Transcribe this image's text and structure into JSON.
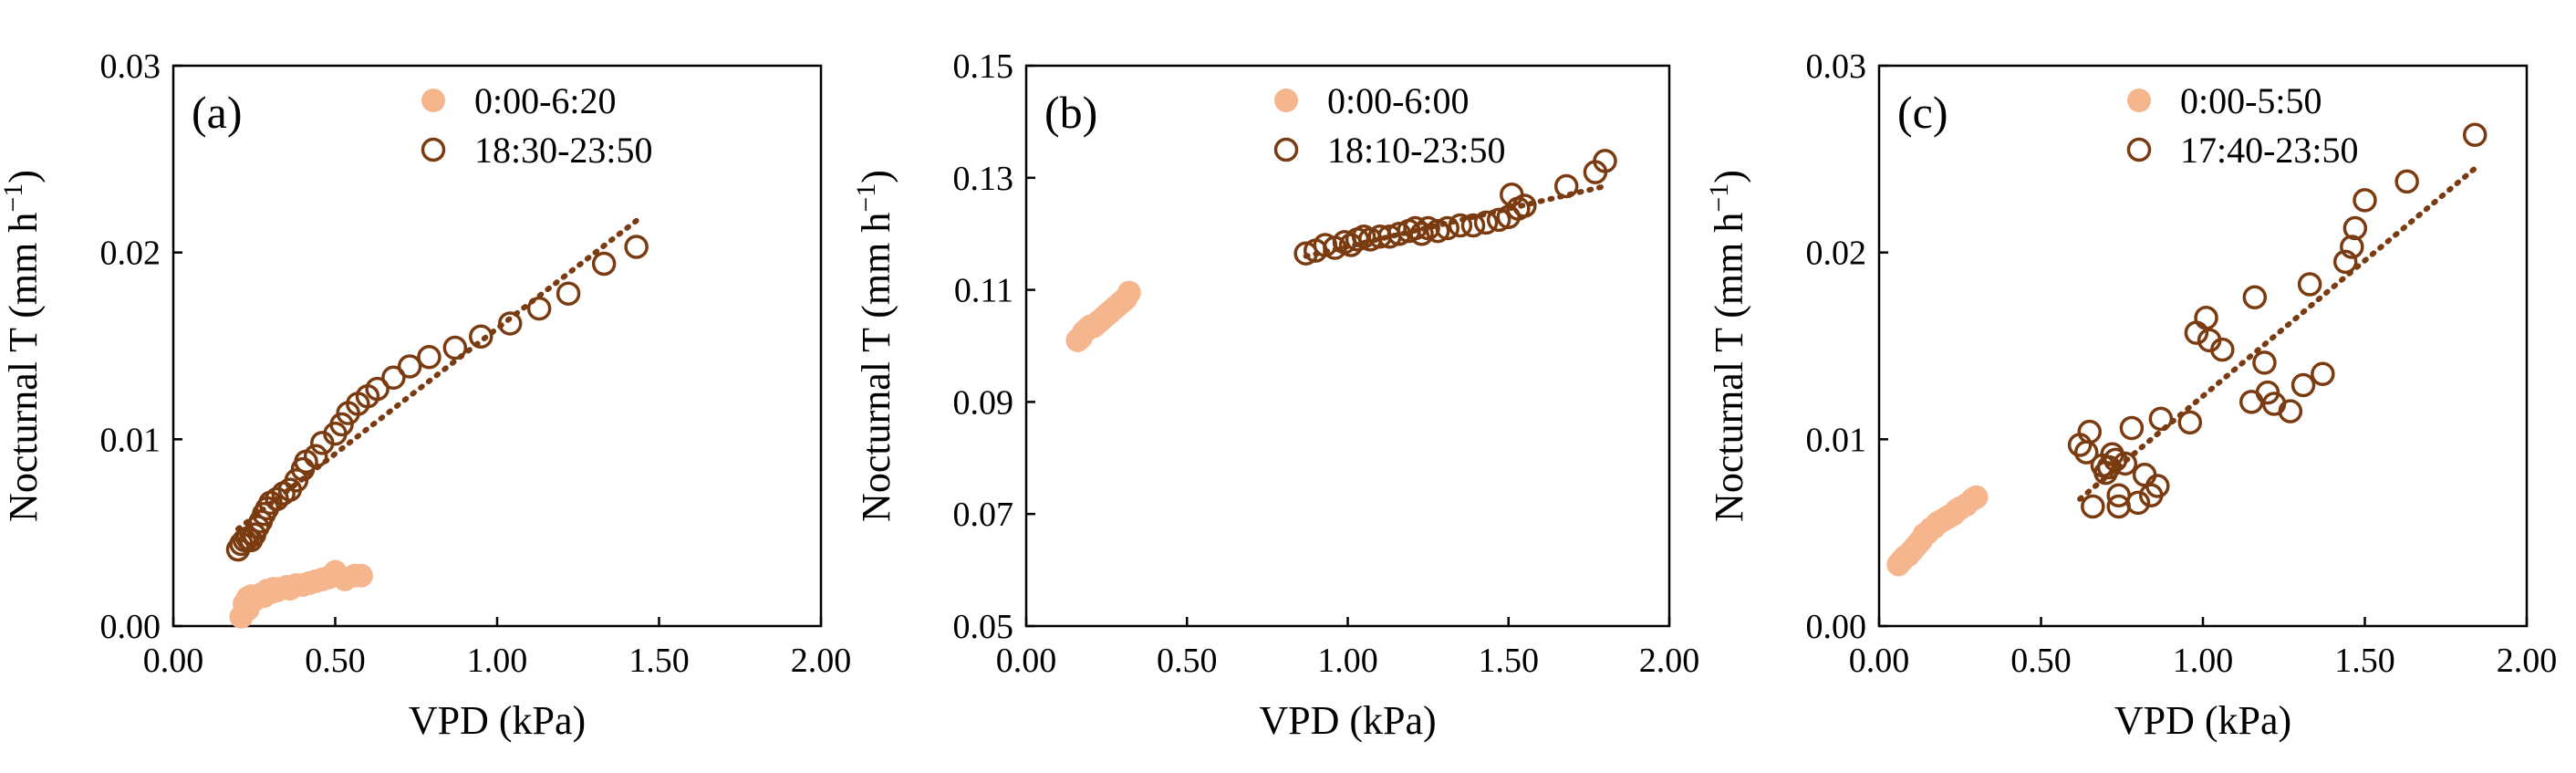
{
  "colors": {
    "series1": "#f5b68e",
    "series2": "#7a3b10",
    "axis": "#000000"
  },
  "chart_data": [
    {
      "type": "scatter",
      "panel_label": "(a)",
      "xlabel": "VPD (kPa)",
      "ylabel": "Nocturnal T (mm h",
      "ylabel_sup": "−1",
      "ylabel_close": ")",
      "xlim": [
        0,
        2
      ],
      "ylim": [
        0,
        0.03
      ],
      "xticks": [
        0,
        0.5,
        1,
        1.5,
        2
      ],
      "xtick_labels": [
        "0.00",
        "0.50",
        "1.00",
        "1.50",
        "2.00"
      ],
      "yticks": [
        0,
        0.01,
        0.02,
        0.03
      ],
      "ytick_labels": [
        "0.00",
        "0.01",
        "0.02",
        "0.03"
      ],
      "series": [
        {
          "name": "0:00-6:20",
          "marker": "filled",
          "color": "#f5b68e",
          "points": [
            [
              0.21,
              0.0005
            ],
            [
              0.22,
              0.0008
            ],
            [
              0.22,
              0.0012
            ],
            [
              0.23,
              0.0015
            ],
            [
              0.23,
              0.0009
            ],
            [
              0.24,
              0.0016
            ],
            [
              0.25,
              0.0014
            ],
            [
              0.26,
              0.0016
            ],
            [
              0.27,
              0.0017
            ],
            [
              0.28,
              0.0016
            ],
            [
              0.29,
              0.0019
            ],
            [
              0.3,
              0.0018
            ],
            [
              0.31,
              0.002
            ],
            [
              0.32,
              0.0019
            ],
            [
              0.33,
              0.002
            ],
            [
              0.35,
              0.0021
            ],
            [
              0.36,
              0.002
            ],
            [
              0.38,
              0.0022
            ],
            [
              0.4,
              0.0022
            ],
            [
              0.42,
              0.0023
            ],
            [
              0.44,
              0.0024
            ],
            [
              0.46,
              0.0025
            ],
            [
              0.48,
              0.0026
            ],
            [
              0.5,
              0.0029
            ],
            [
              0.53,
              0.0025
            ],
            [
              0.56,
              0.0027
            ],
            [
              0.58,
              0.0027
            ]
          ]
        },
        {
          "name": "18:30-23:50",
          "marker": "open",
          "color": "#7a3b10",
          "points": [
            [
              0.2,
              0.0041
            ],
            [
              0.21,
              0.0044
            ],
            [
              0.22,
              0.0046
            ],
            [
              0.23,
              0.0047
            ],
            [
              0.24,
              0.0046
            ],
            [
              0.25,
              0.0049
            ],
            [
              0.26,
              0.0053
            ],
            [
              0.27,
              0.0056
            ],
            [
              0.28,
              0.006
            ],
            [
              0.29,
              0.0063
            ],
            [
              0.3,
              0.0066
            ],
            [
              0.32,
              0.0068
            ],
            [
              0.34,
              0.0071
            ],
            [
              0.36,
              0.0073
            ],
            [
              0.38,
              0.0078
            ],
            [
              0.4,
              0.0084
            ],
            [
              0.41,
              0.0088
            ],
            [
              0.44,
              0.0091
            ],
            [
              0.46,
              0.0098
            ],
            [
              0.5,
              0.0103
            ],
            [
              0.52,
              0.0108
            ],
            [
              0.54,
              0.0114
            ],
            [
              0.57,
              0.0119
            ],
            [
              0.6,
              0.0123
            ],
            [
              0.63,
              0.0127
            ],
            [
              0.68,
              0.0133
            ],
            [
              0.73,
              0.0139
            ],
            [
              0.79,
              0.0144
            ],
            [
              0.87,
              0.0149
            ],
            [
              0.95,
              0.0155
            ],
            [
              1.04,
              0.0162
            ],
            [
              1.13,
              0.017
            ],
            [
              1.22,
              0.0178
            ],
            [
              1.33,
              0.0194
            ],
            [
              1.43,
              0.0203
            ]
          ]
        }
      ],
      "trendline": {
        "series": "18:30-23:50",
        "style": "dotted",
        "x": [
          0.2,
          1.43
        ],
        "y": [
          0.0052,
          0.0217
        ]
      }
    },
    {
      "type": "scatter",
      "panel_label": "(b)",
      "xlabel": "VPD (kPa)",
      "ylabel": "Nocturnal T (mm h",
      "ylabel_sup": "−1",
      "ylabel_close": ")",
      "xlim": [
        0,
        2
      ],
      "ylim": [
        0.05,
        0.15
      ],
      "xticks": [
        0,
        0.5,
        1,
        1.5,
        2
      ],
      "xtick_labels": [
        "0.00",
        "0.50",
        "1.00",
        "1.50",
        "2.00"
      ],
      "yticks": [
        0.05,
        0.07,
        0.09,
        0.11,
        0.13,
        0.15
      ],
      "ytick_labels": [
        "0.05",
        "0.07",
        "0.09",
        "0.11",
        "0.13",
        "0.15"
      ],
      "series": [
        {
          "name": "0:00-6:00",
          "marker": "filled",
          "color": "#f5b68e",
          "points": [
            [
              0.16,
              0.101
            ],
            [
              0.17,
              0.1015
            ],
            [
              0.18,
              0.1025
            ],
            [
              0.19,
              0.103
            ],
            [
              0.2,
              0.1035
            ],
            [
              0.21,
              0.1035
            ],
            [
              0.22,
              0.104
            ],
            [
              0.23,
              0.1045
            ],
            [
              0.24,
              0.105
            ],
            [
              0.25,
              0.1055
            ],
            [
              0.26,
              0.106
            ],
            [
              0.27,
              0.1065
            ],
            [
              0.28,
              0.107
            ],
            [
              0.29,
              0.1075
            ],
            [
              0.3,
              0.108
            ],
            [
              0.31,
              0.1085
            ],
            [
              0.32,
              0.1095
            ]
          ]
        },
        {
          "name": "18:10-23:50",
          "marker": "open",
          "color": "#7a3b10",
          "points": [
            [
              0.87,
              0.1165
            ],
            [
              0.9,
              0.117
            ],
            [
              0.93,
              0.118
            ],
            [
              0.96,
              0.1175
            ],
            [
              0.99,
              0.1185
            ],
            [
              1.01,
              0.118
            ],
            [
              1.03,
              0.119
            ],
            [
              1.05,
              0.1195
            ],
            [
              1.07,
              0.119
            ],
            [
              1.1,
              0.1195
            ],
            [
              1.13,
              0.1195
            ],
            [
              1.16,
              0.12
            ],
            [
              1.19,
              0.1205
            ],
            [
              1.21,
              0.121
            ],
            [
              1.23,
              0.12
            ],
            [
              1.25,
              0.121
            ],
            [
              1.28,
              0.1205
            ],
            [
              1.31,
              0.121
            ],
            [
              1.35,
              0.1215
            ],
            [
              1.39,
              0.1215
            ],
            [
              1.43,
              0.122
            ],
            [
              1.47,
              0.1225
            ],
            [
              1.5,
              0.123
            ],
            [
              1.51,
              0.127
            ],
            [
              1.53,
              0.1245
            ],
            [
              1.55,
              0.125
            ],
            [
              1.68,
              0.1285
            ],
            [
              1.77,
              0.131
            ],
            [
              1.8,
              0.133
            ]
          ]
        }
      ],
      "trendline": {
        "series": "18:10-23:50",
        "style": "dotted",
        "x": [
          0.87,
          1.8
        ],
        "y": [
          0.116,
          0.1285
        ]
      }
    },
    {
      "type": "scatter",
      "panel_label": "(c)",
      "xlabel": "VPD (kPa)",
      "ylabel": "Nocturnal T (mm h",
      "ylabel_sup": "−1",
      "ylabel_close": ")",
      "xlim": [
        0,
        2
      ],
      "ylim": [
        0,
        0.03
      ],
      "xticks": [
        0,
        0.5,
        1,
        1.5,
        2
      ],
      "xtick_labels": [
        "0.00",
        "0.50",
        "1.00",
        "1.50",
        "2.00"
      ],
      "yticks": [
        0,
        0.01,
        0.02,
        0.03
      ],
      "ytick_labels": [
        "0.00",
        "0.01",
        "0.02",
        "0.03"
      ],
      "series": [
        {
          "name": "0:00-5:50",
          "marker": "filled",
          "color": "#f5b68e",
          "points": [
            [
              0.06,
              0.0033
            ],
            [
              0.07,
              0.0035
            ],
            [
              0.08,
              0.0037
            ],
            [
              0.09,
              0.0038
            ],
            [
              0.1,
              0.004
            ],
            [
              0.11,
              0.0042
            ],
            [
              0.12,
              0.0044
            ],
            [
              0.13,
              0.0046
            ],
            [
              0.14,
              0.0049
            ],
            [
              0.15,
              0.005
            ],
            [
              0.16,
              0.0052
            ],
            [
              0.17,
              0.0053
            ],
            [
              0.18,
              0.0055
            ],
            [
              0.19,
              0.0056
            ],
            [
              0.2,
              0.0057
            ],
            [
              0.21,
              0.0058
            ],
            [
              0.22,
              0.0059
            ],
            [
              0.23,
              0.006
            ],
            [
              0.24,
              0.0062
            ],
            [
              0.25,
              0.0063
            ],
            [
              0.27,
              0.0065
            ],
            [
              0.29,
              0.0068
            ],
            [
              0.3,
              0.0069
            ]
          ]
        },
        {
          "name": "17:40-23:50",
          "marker": "open",
          "color": "#7a3b10",
          "points": [
            [
              0.62,
              0.0097
            ],
            [
              0.64,
              0.0093
            ],
            [
              0.65,
              0.0104
            ],
            [
              0.66,
              0.0064
            ],
            [
              0.69,
              0.0086
            ],
            [
              0.7,
              0.0082
            ],
            [
              0.71,
              0.0085
            ],
            [
              0.72,
              0.0092
            ],
            [
              0.73,
              0.0089
            ],
            [
              0.74,
              0.007
            ],
            [
              0.74,
              0.0064
            ],
            [
              0.76,
              0.0087
            ],
            [
              0.78,
              0.0106
            ],
            [
              0.8,
              0.0066
            ],
            [
              0.82,
              0.0081
            ],
            [
              0.84,
              0.007
            ],
            [
              0.86,
              0.0075
            ],
            [
              0.87,
              0.0111
            ],
            [
              0.96,
              0.0109
            ],
            [
              0.98,
              0.0157
            ],
            [
              1.01,
              0.0165
            ],
            [
              1.02,
              0.0153
            ],
            [
              1.06,
              0.0148
            ],
            [
              1.15,
              0.012
            ],
            [
              1.16,
              0.0176
            ],
            [
              1.19,
              0.0141
            ],
            [
              1.2,
              0.0125
            ],
            [
              1.22,
              0.0119
            ],
            [
              1.27,
              0.0115
            ],
            [
              1.31,
              0.0129
            ],
            [
              1.33,
              0.0183
            ],
            [
              1.37,
              0.0135
            ],
            [
              1.44,
              0.0195
            ],
            [
              1.46,
              0.0203
            ],
            [
              1.47,
              0.0213
            ],
            [
              1.5,
              0.0228
            ],
            [
              1.63,
              0.0238
            ],
            [
              1.84,
              0.0263
            ]
          ]
        }
      ],
      "trendline": {
        "series": "17:40-23:50",
        "style": "dotted",
        "x": [
          0.62,
          1.84
        ],
        "y": [
          0.0068,
          0.0245
        ]
      }
    }
  ]
}
